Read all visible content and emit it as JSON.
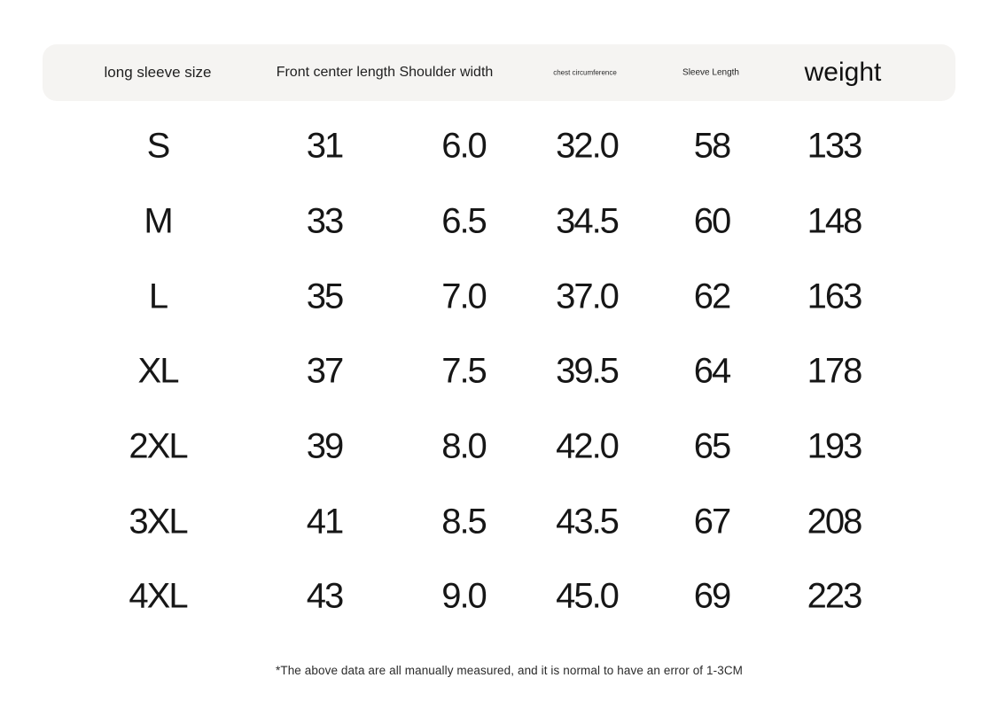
{
  "chart_data": {
    "type": "table",
    "title": "long sleeve size chart",
    "header": {
      "size": "long sleeve size",
      "front_shoulder_combined": "Front center length Shoulder width",
      "chest": "chest circumference",
      "sleeve": "Sleeve Length",
      "weight": "weight"
    },
    "columns": [
      "size",
      "front center length",
      "shoulder width",
      "chest circumference",
      "sleeve length",
      "weight"
    ],
    "rows": [
      [
        "S",
        "31",
        "6.0",
        "32.0",
        "58",
        "133"
      ],
      [
        "M",
        "33",
        "6.5",
        "34.5",
        "60",
        "148"
      ],
      [
        "L",
        "35",
        "7.0",
        "37.0",
        "62",
        "163"
      ],
      [
        "XL",
        "37",
        "7.5",
        "39.5",
        "64",
        "178"
      ],
      [
        "2XL",
        "39",
        "8.0",
        "42.0",
        "65",
        "193"
      ],
      [
        "3XL",
        "41",
        "8.5",
        "43.5",
        "67",
        "208"
      ],
      [
        "4XL",
        "43",
        "9.0",
        "45.0",
        "69",
        "223"
      ]
    ],
    "footnote": "*The above data are all manually measured, and it is normal to have an error of 1-3CM",
    "layout": {
      "grid": "off",
      "header_row": "rounded pill band",
      "alignment": "center"
    }
  },
  "style": {
    "page_background": "#ffffff",
    "header_background": "#f5f4f2",
    "text_color": "#161616"
  }
}
